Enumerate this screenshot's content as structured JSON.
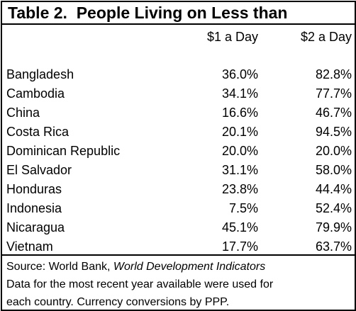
{
  "title": "Table 2.  People Living on Less than",
  "columns": {
    "dollar1": "$1 a Day",
    "dollar2": "$2 a Day"
  },
  "rows": [
    {
      "country": "Bangladesh",
      "v1": "36.0%",
      "v2": "82.8%"
    },
    {
      "country": "Cambodia",
      "v1": "34.1%",
      "v2": "77.7%"
    },
    {
      "country": "China",
      "v1": "16.6%",
      "v2": "46.7%"
    },
    {
      "country": "Costa Rica",
      "v1": "20.1%",
      "v2": "94.5%"
    },
    {
      "country": "Dominican Republic",
      "v1": "20.0%",
      "v2": "20.0%"
    },
    {
      "country": "El Salvador",
      "v1": "31.1%",
      "v2": "58.0%"
    },
    {
      "country": "Honduras",
      "v1": "23.8%",
      "v2": "44.4%"
    },
    {
      "country": "Indonesia",
      "v1": "7.5%",
      "v2": "52.4%"
    },
    {
      "country": "Nicaragua",
      "v1": "45.1%",
      "v2": "79.9%"
    },
    {
      "country": "Vietnam",
      "v1": "17.7%",
      "v2": "63.7%"
    }
  ],
  "notes": {
    "source_prefix": "Source: World Bank, ",
    "source_title": "World Development Indicators",
    "line2": "Data for the most recent year available were used for",
    "line3": "each country.  Currency conversions by PPP."
  }
}
